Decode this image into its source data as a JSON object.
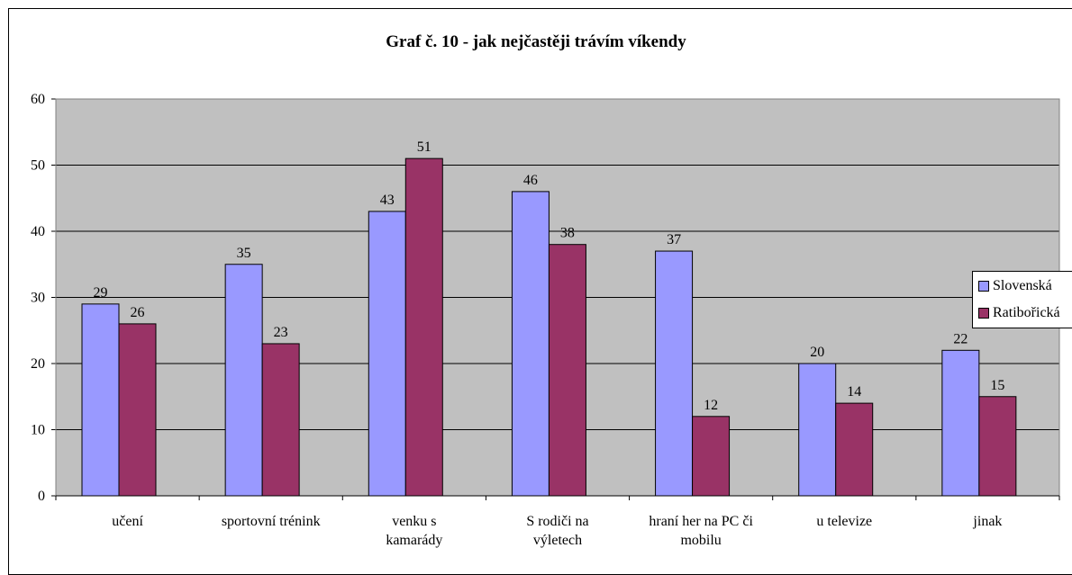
{
  "chart_data": {
    "type": "bar",
    "title": "Graf č. 10 - jak nejčastěji trávím víkendy",
    "categories": [
      [
        "učení"
      ],
      [
        "sportovní trénink"
      ],
      [
        "venku s",
        "kamarády"
      ],
      [
        "S rodiči na",
        "výletech"
      ],
      [
        "hraní her na PC či",
        "mobilu"
      ],
      [
        "u televize"
      ],
      [
        "jinak"
      ]
    ],
    "series": [
      {
        "name": "Slovenská",
        "color": "#9999ff",
        "values": [
          29,
          35,
          43,
          46,
          37,
          20,
          22
        ]
      },
      {
        "name": "Ratibořická",
        "color": "#993366",
        "values": [
          26,
          23,
          51,
          38,
          12,
          14,
          15
        ]
      }
    ],
    "ylim": [
      0,
      60
    ],
    "yticks": [
      "0",
      "10",
      "20",
      "30",
      "40",
      "50",
      "60"
    ],
    "grid": true,
    "plot_background": "#c0c0c0",
    "legend_position": "right",
    "xlabel": "",
    "ylabel": ""
  }
}
